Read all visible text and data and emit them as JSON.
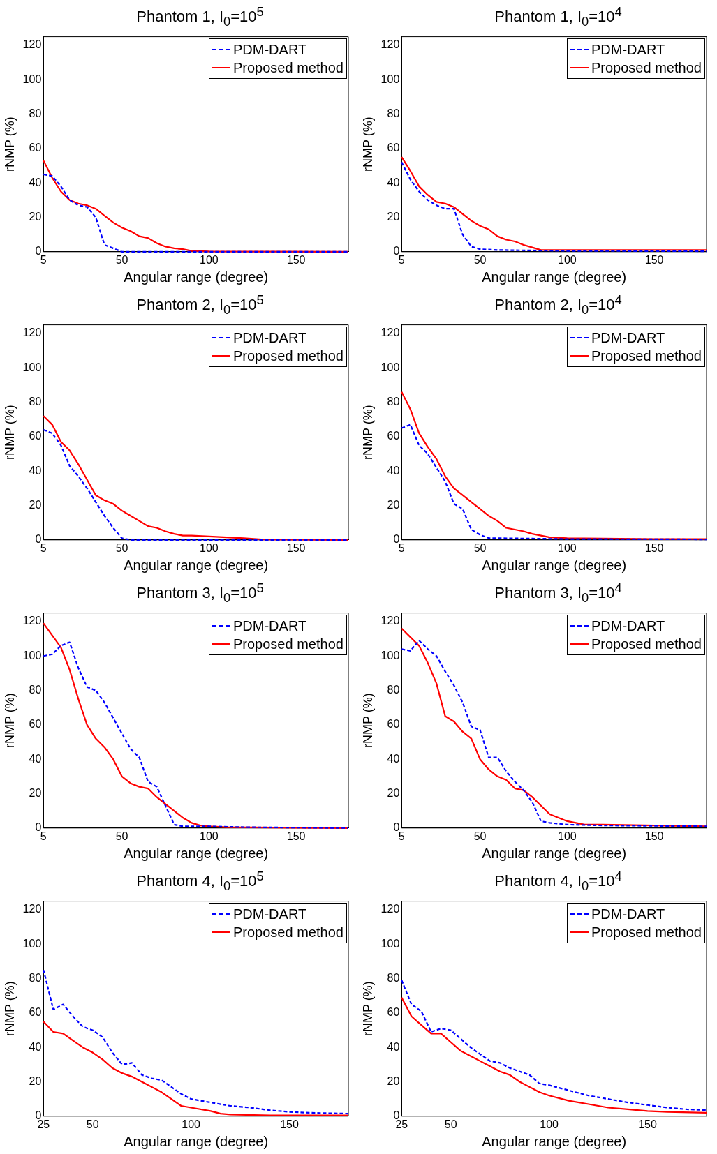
{
  "chart_data": [
    {
      "type": "line",
      "title": "Phantom 1, I$_{0}$=10$^{5}$",
      "xlabel": "Angular range (degree)",
      "ylabel": "rNMP (%)",
      "xlim": [
        5,
        180
      ],
      "xticks": [
        5,
        50,
        100,
        150
      ],
      "ylim": [
        0,
        125
      ],
      "yticks": [
        0,
        20,
        40,
        60,
        80,
        100,
        120
      ],
      "grid": false,
      "legend": "top right",
      "marker": "none",
      "series": [
        {
          "name": "PDM-DART",
          "color": "#0000ff",
          "line_style": "dashed",
          "x": [
            5,
            10,
            15,
            20,
            25,
            30,
            35,
            40,
            45,
            50,
            60,
            180
          ],
          "values": [
            45,
            44,
            38,
            30,
            27,
            26,
            20,
            4,
            2,
            0,
            0,
            0
          ]
        },
        {
          "name": "Proposed method",
          "color": "#ff0000",
          "line_style": "solid",
          "x": [
            5,
            10,
            15,
            20,
            25,
            30,
            35,
            40,
            45,
            50,
            55,
            60,
            65,
            70,
            75,
            80,
            85,
            90,
            100,
            180
          ],
          "values": [
            53,
            43,
            35,
            30,
            28,
            27,
            25,
            21,
            17,
            14,
            12,
            9,
            8,
            5,
            3,
            2,
            1.5,
            0.5,
            0.2,
            0
          ]
        }
      ]
    },
    {
      "type": "line",
      "title": "Phantom 1, I$_{0}$=10$^{4}$",
      "xlabel": "Angular range (degree)",
      "ylabel": "rNMP (%)",
      "xlim": [
        5,
        180
      ],
      "xticks": [
        5,
        50,
        100,
        150
      ],
      "ylim": [
        0,
        125
      ],
      "yticks": [
        0,
        20,
        40,
        60,
        80,
        100,
        120
      ],
      "grid": false,
      "legend": "top right",
      "marker": "none",
      "series": [
        {
          "name": "PDM-DART",
          "color": "#0000ff",
          "line_style": "dashed",
          "x": [
            5,
            10,
            15,
            20,
            25,
            30,
            35,
            40,
            45,
            50,
            60,
            100,
            180
          ],
          "values": [
            52,
            42,
            35,
            30,
            27,
            25,
            25,
            10,
            3,
            1.5,
            1,
            0.5,
            0.3
          ]
        },
        {
          "name": "Proposed method",
          "color": "#ff0000",
          "line_style": "solid",
          "x": [
            5,
            10,
            15,
            20,
            25,
            30,
            35,
            40,
            45,
            50,
            55,
            60,
            65,
            70,
            75,
            80,
            85,
            90,
            100,
            180
          ],
          "values": [
            55,
            47,
            38,
            33,
            29,
            28,
            26,
            22,
            18,
            15,
            13,
            9,
            7,
            6,
            4,
            2.5,
            1,
            1,
            1,
            1
          ]
        }
      ]
    },
    {
      "type": "line",
      "title": "Phantom 2, I$_{0}$=10$^{5}$",
      "xlabel": "Angular range (degree)",
      "ylabel": "rNMP (%)",
      "xlim": [
        5,
        180
      ],
      "xticks": [
        5,
        50,
        100,
        150
      ],
      "ylim": [
        0,
        125
      ],
      "yticks": [
        0,
        20,
        40,
        60,
        80,
        100,
        120
      ],
      "grid": false,
      "legend": "top right",
      "marker": "none",
      "series": [
        {
          "name": "PDM-DART",
          "color": "#0000ff",
          "line_style": "dashed",
          "x": [
            5,
            10,
            15,
            20,
            25,
            30,
            35,
            40,
            45,
            50,
            55,
            180
          ],
          "values": [
            64,
            62,
            55,
            43,
            37,
            30,
            22,
            14,
            7,
            1,
            0,
            0
          ]
        },
        {
          "name": "Proposed method",
          "color": "#ff0000",
          "line_style": "solid",
          "x": [
            5,
            10,
            15,
            20,
            25,
            30,
            35,
            40,
            45,
            50,
            55,
            60,
            65,
            70,
            75,
            80,
            85,
            90,
            100,
            120,
            130,
            180
          ],
          "values": [
            72,
            67,
            57,
            52,
            44,
            35,
            26,
            23,
            21,
            17,
            14,
            11,
            8,
            7,
            5,
            3.5,
            2.5,
            2.5,
            2,
            1,
            0.3,
            0
          ]
        }
      ]
    },
    {
      "type": "line",
      "title": "Phantom 2, I$_{0}$=10$^{4}$",
      "xlabel": "Angular range (degree)",
      "ylabel": "rNMP (%)",
      "xlim": [
        5,
        180
      ],
      "xticks": [
        5,
        50,
        100,
        150
      ],
      "ylim": [
        0,
        125
      ],
      "yticks": [
        0,
        20,
        40,
        60,
        80,
        100,
        120
      ],
      "grid": false,
      "legend": "top right",
      "marker": "none",
      "series": [
        {
          "name": "PDM-DART",
          "color": "#0000ff",
          "line_style": "dashed",
          "x": [
            5,
            10,
            15,
            20,
            25,
            30,
            35,
            40,
            45,
            50,
            55,
            60,
            100,
            180
          ],
          "values": [
            65,
            67,
            55,
            50,
            42,
            34,
            21,
            18,
            6,
            3,
            1,
            1,
            0.5,
            0.3
          ]
        },
        {
          "name": "Proposed method",
          "color": "#ff0000",
          "line_style": "solid",
          "x": [
            5,
            10,
            15,
            20,
            25,
            30,
            35,
            40,
            45,
            50,
            55,
            60,
            65,
            70,
            75,
            80,
            85,
            90,
            100,
            150,
            180
          ],
          "values": [
            86,
            76,
            62,
            54,
            47,
            37,
            30,
            26,
            22,
            18,
            14,
            11,
            7,
            6,
            5,
            3.5,
            2.5,
            1.5,
            1,
            0.5,
            0.5
          ]
        }
      ]
    },
    {
      "type": "line",
      "title": "Phantom 3, I$_{0}$=10$^{5}$",
      "xlabel": "Angular range (degree)",
      "ylabel": "rNMP (%)",
      "xlim": [
        5,
        180
      ],
      "xticks": [
        5,
        50,
        100,
        150
      ],
      "ylim": [
        0,
        125
      ],
      "yticks": [
        0,
        20,
        40,
        60,
        80,
        100,
        120
      ],
      "grid": false,
      "legend": "top right",
      "marker": "none",
      "series": [
        {
          "name": "PDM-DART",
          "color": "#0000ff",
          "line_style": "dashed",
          "x": [
            5,
            10,
            15,
            20,
            25,
            30,
            35,
            40,
            45,
            50,
            55,
            60,
            65,
            70,
            75,
            80,
            85,
            90,
            100,
            120,
            180
          ],
          "values": [
            100,
            101,
            106,
            108,
            93,
            82,
            80,
            73,
            64,
            55,
            46,
            41,
            27,
            24,
            13,
            2,
            1,
            1,
            1,
            0.5,
            0
          ]
        },
        {
          "name": "Proposed method",
          "color": "#ff0000",
          "line_style": "solid",
          "x": [
            5,
            10,
            15,
            20,
            25,
            30,
            35,
            40,
            45,
            50,
            55,
            60,
            65,
            70,
            75,
            80,
            85,
            90,
            95,
            100,
            110,
            180
          ],
          "values": [
            119,
            112,
            105,
            92,
            75,
            60,
            52,
            47,
            40,
            30,
            26,
            24,
            23,
            18,
            14,
            10,
            6,
            3,
            1.5,
            1,
            0.5,
            0
          ]
        }
      ]
    },
    {
      "type": "line",
      "title": "Phantom 3, I$_{0}$=10$^{4}$",
      "xlabel": "Angular range (degree)",
      "ylabel": "rNMP (%)",
      "xlim": [
        5,
        180
      ],
      "xticks": [
        5,
        50,
        100,
        150
      ],
      "ylim": [
        0,
        125
      ],
      "yticks": [
        0,
        20,
        40,
        60,
        80,
        100,
        120
      ],
      "grid": false,
      "legend": "top right",
      "marker": "none",
      "series": [
        {
          "name": "PDM-DART",
          "color": "#0000ff",
          "line_style": "dashed",
          "x": [
            5,
            10,
            15,
            20,
            25,
            30,
            35,
            40,
            45,
            50,
            55,
            60,
            65,
            70,
            75,
            80,
            85,
            90,
            100,
            120,
            180
          ],
          "values": [
            104,
            103,
            109,
            104,
            100,
            91,
            83,
            73,
            59,
            57,
            41,
            41,
            33,
            27,
            22,
            15,
            4,
            3,
            2,
            1.5,
            1
          ]
        },
        {
          "name": "Proposed method",
          "color": "#ff0000",
          "line_style": "solid",
          "x": [
            5,
            10,
            15,
            20,
            25,
            30,
            35,
            40,
            45,
            50,
            55,
            60,
            65,
            70,
            75,
            80,
            85,
            90,
            95,
            100,
            110,
            120,
            150,
            180
          ],
          "values": [
            116,
            111,
            106,
            96,
            84,
            65,
            62,
            56,
            52,
            40,
            34,
            30,
            28,
            23,
            22,
            18,
            13,
            8,
            6,
            4,
            2,
            2,
            1.5,
            1
          ]
        }
      ]
    },
    {
      "type": "line",
      "title": "Phantom 4, I$_{0}$=10$^{5}$",
      "xlabel": "Angular range (degree)",
      "ylabel": "rNMP (%)",
      "xlim": [
        25,
        180
      ],
      "xticks": [
        25,
        50,
        100,
        150
      ],
      "ylim": [
        0,
        125
      ],
      "yticks": [
        0,
        20,
        40,
        60,
        80,
        100,
        120
      ],
      "grid": false,
      "legend": "top right",
      "marker": "none",
      "series": [
        {
          "name": "PDM-DART",
          "color": "#0000ff",
          "line_style": "dashed",
          "x": [
            25,
            30,
            35,
            40,
            45,
            50,
            55,
            60,
            65,
            70,
            75,
            80,
            85,
            90,
            95,
            100,
            110,
            120,
            130,
            140,
            150,
            160,
            180
          ],
          "values": [
            85,
            62,
            65,
            58,
            52,
            50,
            46,
            37,
            30,
            31,
            24,
            22,
            21,
            17,
            13,
            10,
            8,
            6,
            5,
            3.5,
            2.5,
            2,
            1.5
          ]
        },
        {
          "name": "Proposed method",
          "color": "#ff0000",
          "line_style": "solid",
          "x": [
            25,
            30,
            35,
            40,
            45,
            50,
            55,
            60,
            65,
            70,
            75,
            80,
            85,
            90,
            95,
            100,
            110,
            115,
            120,
            140,
            180
          ],
          "values": [
            55,
            49,
            48,
            44,
            40,
            37,
            33,
            28,
            25,
            23,
            20,
            17,
            14,
            10,
            6,
            5,
            3,
            1.5,
            1,
            0.5,
            0.5
          ]
        }
      ]
    },
    {
      "type": "line",
      "title": "Phantom 4, I$_{0}$=10$^{4}$",
      "xlabel": "Angular range (degree)",
      "ylabel": "rNMP (%)",
      "xlim": [
        25,
        180
      ],
      "xticks": [
        25,
        50,
        100,
        150
      ],
      "ylim": [
        0,
        125
      ],
      "yticks": [
        0,
        20,
        40,
        60,
        80,
        100,
        120
      ],
      "grid": false,
      "legend": "top right",
      "marker": "none",
      "series": [
        {
          "name": "PDM-DART",
          "color": "#0000ff",
          "line_style": "dashed",
          "x": [
            25,
            30,
            35,
            40,
            45,
            50,
            55,
            60,
            65,
            70,
            75,
            80,
            85,
            90,
            95,
            100,
            110,
            120,
            130,
            140,
            150,
            160,
            170,
            180
          ],
          "values": [
            79,
            65,
            61,
            49,
            51,
            50,
            45,
            40,
            36,
            32,
            31,
            28,
            26,
            24,
            19,
            18,
            15,
            12,
            10,
            8,
            6.5,
            5,
            4,
            3.5
          ]
        },
        {
          "name": "Proposed method",
          "color": "#ff0000",
          "line_style": "solid",
          "x": [
            25,
            30,
            35,
            40,
            45,
            50,
            55,
            60,
            65,
            70,
            75,
            80,
            85,
            90,
            95,
            100,
            110,
            120,
            130,
            140,
            150,
            160,
            180
          ],
          "values": [
            69,
            58,
            53,
            48,
            48,
            43,
            38,
            35,
            32,
            29,
            26,
            24,
            20,
            17,
            14,
            12,
            9,
            7,
            5,
            4,
            3,
            2.5,
            2
          ]
        }
      ]
    }
  ]
}
